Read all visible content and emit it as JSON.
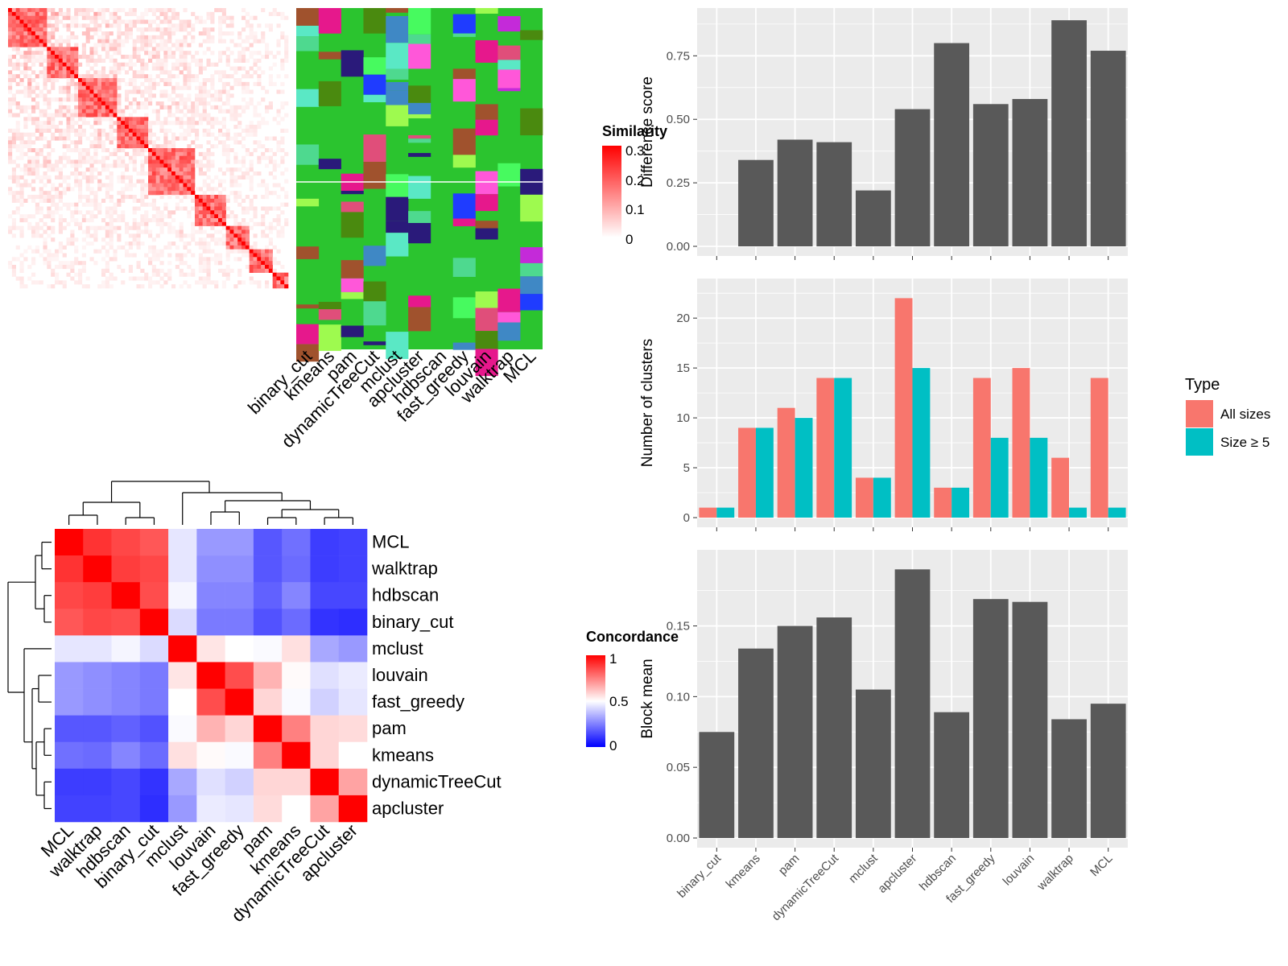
{
  "colors": {
    "panel_bg": "#ebebeb",
    "bar_gray": "#595959",
    "all_sizes": "#f8766d",
    "size_ge5": "#00bfc4",
    "sim_high": "#ff0000",
    "conc_high": "#ff0000",
    "conc_low": "#0000ff",
    "cluster_green": "#2bc42f"
  },
  "similarity_heatmap": {
    "legend_title": "Similarity",
    "legend_ticks": [
      "0.3",
      "0.2",
      "0.1",
      "0"
    ],
    "method_labels": [
      "binary_cut",
      "kmeans",
      "pam",
      "dynamicTreeCut",
      "mclust",
      "apcluster",
      "hdbscan",
      "fast_greedy",
      "louvain",
      "walktrap",
      "MCL"
    ]
  },
  "concordance_heatmap": {
    "legend_title": "Concordance",
    "legend_ticks": [
      "1",
      "0.5",
      "0"
    ],
    "row_labels": [
      "MCL",
      "walktrap",
      "hdbscan",
      "binary_cut",
      "mclust",
      "louvain",
      "fast_greedy",
      "pam",
      "kmeans",
      "dynamicTreeCut",
      "apcluster"
    ],
    "col_labels": [
      "MCL",
      "walktrap",
      "hdbscan",
      "binary_cut",
      "mclust",
      "louvain",
      "fast_greedy",
      "pam",
      "kmeans",
      "dynamicTreeCut",
      "apcluster"
    ],
    "matrix": [
      [
        1.0,
        0.9,
        0.86,
        0.83,
        0.45,
        0.3,
        0.3,
        0.17,
        0.22,
        0.12,
        0.13
      ],
      [
        0.9,
        1.0,
        0.88,
        0.86,
        0.45,
        0.28,
        0.28,
        0.17,
        0.21,
        0.12,
        0.13
      ],
      [
        0.86,
        0.88,
        1.0,
        0.85,
        0.48,
        0.26,
        0.26,
        0.19,
        0.26,
        0.14,
        0.14
      ],
      [
        0.83,
        0.86,
        0.85,
        1.0,
        0.43,
        0.24,
        0.24,
        0.16,
        0.21,
        0.1,
        0.09
      ],
      [
        0.45,
        0.45,
        0.48,
        0.43,
        1.0,
        0.55,
        0.5,
        0.49,
        0.56,
        0.33,
        0.3
      ],
      [
        0.3,
        0.28,
        0.26,
        0.24,
        0.55,
        1.0,
        0.85,
        0.65,
        0.51,
        0.44,
        0.46
      ],
      [
        0.3,
        0.28,
        0.26,
        0.24,
        0.5,
        0.85,
        1.0,
        0.58,
        0.49,
        0.41,
        0.45
      ],
      [
        0.17,
        0.17,
        0.19,
        0.16,
        0.49,
        0.65,
        0.58,
        1.0,
        0.75,
        0.58,
        0.57
      ],
      [
        0.22,
        0.21,
        0.26,
        0.21,
        0.56,
        0.51,
        0.49,
        0.75,
        1.0,
        0.58,
        0.5
      ],
      [
        0.12,
        0.12,
        0.14,
        0.1,
        0.33,
        0.44,
        0.41,
        0.58,
        0.58,
        1.0,
        0.68
      ],
      [
        0.13,
        0.13,
        0.14,
        0.09,
        0.3,
        0.46,
        0.45,
        0.57,
        0.5,
        0.68,
        1.0
      ]
    ]
  },
  "chart_data": [
    {
      "type": "bar",
      "ylabel": "Difference score",
      "categories": [
        "binary_cut",
        "kmeans",
        "pam",
        "dynamicTreeCut",
        "mclust",
        "apcluster",
        "hdbscan",
        "fast_greedy",
        "louvain",
        "walktrap",
        "MCL"
      ],
      "values": [
        0,
        0.34,
        0.42,
        0.41,
        0.22,
        0.54,
        0.8,
        0.56,
        0.58,
        0.89,
        0.77
      ],
      "ylim": [
        0,
        0.9
      ],
      "yticks": [
        0.0,
        0.25,
        0.5,
        0.75
      ],
      "ytick_labels": [
        "0.00",
        "0.25",
        "0.50",
        "0.75"
      ],
      "grid": true
    },
    {
      "type": "bar",
      "ylabel": "Number of clusters",
      "categories": [
        "binary_cut",
        "kmeans",
        "pam",
        "dynamicTreeCut",
        "mclust",
        "apcluster",
        "hdbscan",
        "fast_greedy",
        "louvain",
        "walktrap",
        "MCL"
      ],
      "series": [
        {
          "name": "All sizes",
          "values": [
            1,
            9,
            11,
            14,
            4,
            22,
            3,
            14,
            15,
            6,
            14
          ]
        },
        {
          "name": "Size ≥ 5",
          "values": [
            1,
            9,
            10,
            14,
            4,
            15,
            3,
            8,
            8,
            1,
            1
          ]
        }
      ],
      "ylim": [
        0,
        23
      ],
      "yticks": [
        0,
        5,
        10,
        15,
        20
      ],
      "ytick_labels": [
        "0",
        "5",
        "10",
        "15",
        "20"
      ],
      "legend_title": "Type",
      "legend_position": "right",
      "grid": true
    },
    {
      "type": "bar",
      "ylabel": "Block mean",
      "categories": [
        "binary_cut",
        "kmeans",
        "pam",
        "dynamicTreeCut",
        "mclust",
        "apcluster",
        "hdbscan",
        "fast_greedy",
        "louvain",
        "walktrap",
        "MCL"
      ],
      "values": [
        0.075,
        0.134,
        0.15,
        0.156,
        0.105,
        0.19,
        0.089,
        0.169,
        0.167,
        0.084,
        0.095
      ],
      "ylim": [
        0,
        0.197
      ],
      "yticks": [
        0.0,
        0.05,
        0.1,
        0.15
      ],
      "ytick_labels": [
        "0.00",
        "0.05",
        "0.10",
        "0.15"
      ],
      "grid": true
    }
  ]
}
